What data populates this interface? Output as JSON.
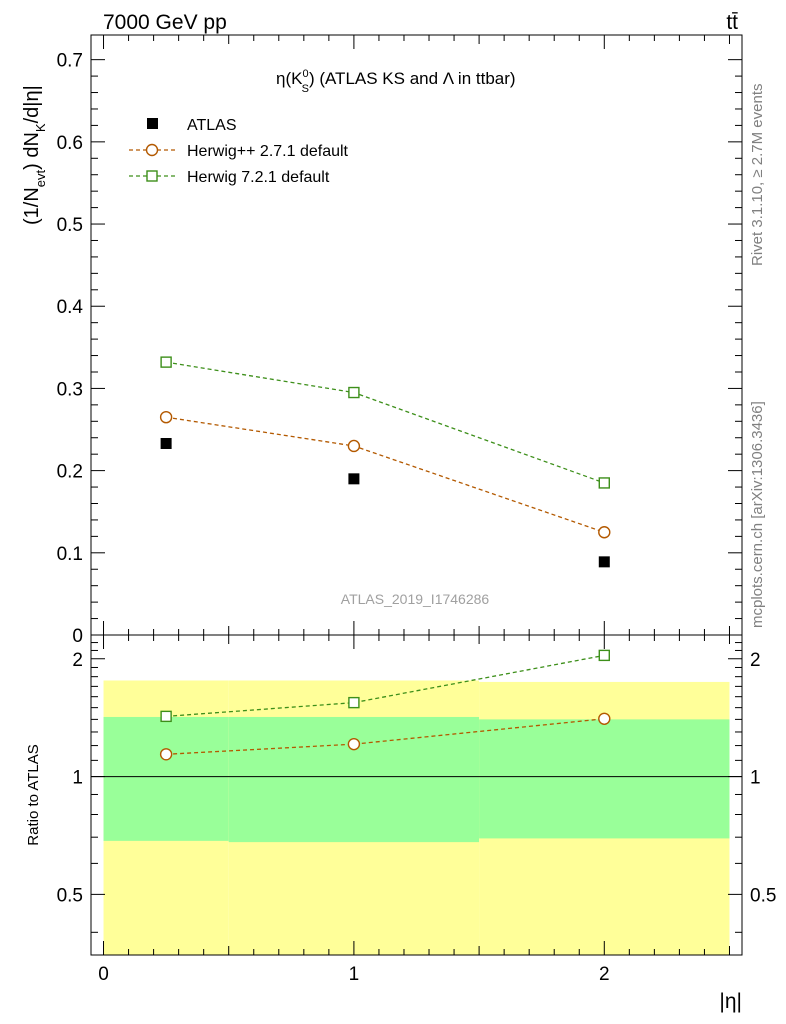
{
  "header": {
    "left": "7000 GeV pp",
    "right": "tt̄"
  },
  "side_labels": {
    "rivet": "Rivet 3.1.10, ≥ 2.7M events",
    "mcplots": "mcplots.cern.ch [arXiv:1306.3436]"
  },
  "chart_data": [
    {
      "type": "scatter",
      "title": "η(K⁰S) (ATLAS KS and Λ in ttbar)",
      "title_parts": {
        "eta": "η(K",
        "sup": "0",
        "sub": "S",
        "rest": ") (ATLAS KS and Λ in ttbar)"
      },
      "ylabel": "(1/N_evt) dN_K/d|η|",
      "ylabel_parts": {
        "a": "(1/N",
        "sub1": "evt",
        "b": ") dN",
        "sub2": "K",
        "c": "/d|η|"
      },
      "watermark": "ATLAS_2019_I1746286",
      "xlim": [
        -0.05,
        2.55
      ],
      "ylim": [
        0,
        0.73
      ],
      "yticks": [
        0,
        0.1,
        0.2,
        0.3,
        0.4,
        0.5,
        0.6,
        0.7
      ],
      "ytick_labels": [
        "0",
        "0.1",
        "0.2",
        "0.3",
        "0.4",
        "0.5",
        "0.6",
        "0.7"
      ],
      "legend": {
        "placement": "top-left"
      },
      "series": [
        {
          "name": "ATLAS",
          "marker": "filled-square",
          "color": "#000000",
          "x": [
            0.25,
            1.0,
            2.0
          ],
          "y": [
            0.233,
            0.19,
            0.089
          ]
        },
        {
          "name": "Herwig++ 2.7.1 default",
          "marker": "open-circle",
          "color": "#b35900",
          "x": [
            0.25,
            1.0,
            2.0
          ],
          "y": [
            0.265,
            0.23,
            0.125
          ]
        },
        {
          "name": "Herwig 7.2.1 default",
          "marker": "open-square",
          "color": "#3d8f1a",
          "x": [
            0.25,
            1.0,
            2.0
          ],
          "y": [
            0.332,
            0.295,
            0.185
          ]
        }
      ]
    },
    {
      "type": "scatter",
      "ylabel": "Ratio to ATLAS",
      "xlabel": "|η|",
      "xlim": [
        -0.05,
        2.55
      ],
      "ylim": [
        0.35,
        2.3
      ],
      "xticks": [
        0,
        1,
        2
      ],
      "xtick_labels": [
        "0",
        "1",
        "2"
      ],
      "yticks": [
        0.5,
        1,
        2
      ],
      "ytick_labels": [
        "0.5",
        "1",
        "2"
      ],
      "bands": [
        {
          "x0": 0.0,
          "x1": 0.5,
          "green": [
            0.685,
            1.42
          ],
          "yellow": [
            0.35,
            1.76
          ]
        },
        {
          "x0": 0.5,
          "x1": 1.5,
          "green": [
            0.68,
            1.42
          ],
          "yellow": [
            0.35,
            1.76
          ]
        },
        {
          "x0": 1.5,
          "x1": 2.5,
          "green": [
            0.695,
            1.4
          ],
          "yellow": [
            0.35,
            1.745
          ]
        }
      ],
      "series": [
        {
          "name": "Herwig++ 2.7.1 default",
          "marker": "open-circle",
          "color": "#b35900",
          "x": [
            0.25,
            1.0,
            2.0
          ],
          "y": [
            1.14,
            1.21,
            1.405
          ]
        },
        {
          "name": "Herwig 7.2.1 default",
          "marker": "open-square",
          "color": "#3d8f1a",
          "x": [
            0.25,
            1.0,
            2.0
          ],
          "y": [
            1.425,
            1.545,
            2.04
          ]
        }
      ]
    }
  ]
}
